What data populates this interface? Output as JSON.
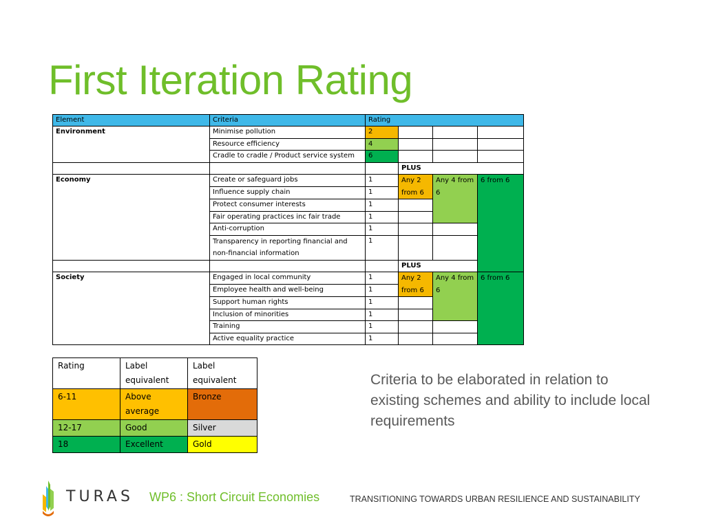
{
  "slide": {
    "title": "First Iteration Rating"
  },
  "main_table": {
    "headers": [
      "Element",
      "Criteria",
      "Rating"
    ],
    "environment": {
      "element": "Environment",
      "rows": [
        {
          "criteria": "Minimise pollution",
          "rating": "2"
        },
        {
          "criteria": "Resource efficiency",
          "rating": "4"
        },
        {
          "criteria": "Cradle to cradle / Product service system",
          "rating": "6"
        }
      ]
    },
    "plus_label": "PLUS",
    "economy": {
      "element": "Economy",
      "rows": [
        {
          "criteria": "Create or safeguard jobs",
          "rating": "1"
        },
        {
          "criteria": "Influence supply chain",
          "rating": "1"
        },
        {
          "criteria": "Protect consumer interests",
          "rating": "1"
        },
        {
          "criteria": "Fair operating practices inc fair trade",
          "rating": "1"
        },
        {
          "criteria": "Anti-corruption",
          "rating": "1"
        },
        {
          "criteria": "Transparency in reporting financial and non-financial information",
          "rating": "1"
        }
      ],
      "any2": "Any 2 from 6",
      "any4": "Any 4 from 6",
      "all6": "6 from 6"
    },
    "society": {
      "element": "Society",
      "rows": [
        {
          "criteria": "Engaged in local community",
          "rating": "1"
        },
        {
          "criteria": "Employee health and well-being",
          "rating": "1"
        },
        {
          "criteria": "Support human rights",
          "rating": "1"
        },
        {
          "criteria": "Inclusion of minorities",
          "rating": "1"
        },
        {
          "criteria": "Training",
          "rating": "1"
        },
        {
          "criteria": "Active equality practice",
          "rating": "1"
        }
      ],
      "any2": "Any 2 from 6",
      "any4": "Any 4 from 6",
      "all6": "6 from 6"
    }
  },
  "legend_table": {
    "headers": [
      "Rating",
      "Label equivalent",
      "Label equivalent"
    ],
    "rows": [
      {
        "rating": "6-11",
        "label1": "Above average",
        "label2": "Bronze"
      },
      {
        "rating": "12-17",
        "label1": "Good",
        "label2": "Silver"
      },
      {
        "rating": "18",
        "label1": "Excellent",
        "label2": "Gold"
      }
    ]
  },
  "note": "Criteria to be elaborated in relation to existing schemes and ability to include local requirements",
  "footer": {
    "brand": "TURAS",
    "workpackage": "WP6 : Short Circuit Economies",
    "tagline": "TRANSITIONING TOWARDS URBAN RESILIENCE AND SUSTAINABILITY"
  },
  "colors": {
    "title_green": "#6fbe2a",
    "header_blue": "#3fb8e8",
    "orange": "#f5b800",
    "light_green": "#92d050",
    "dark_green": "#00b050",
    "bronze": "#e36c09",
    "silver": "#d9d9d9",
    "gold": "#ffff00"
  }
}
